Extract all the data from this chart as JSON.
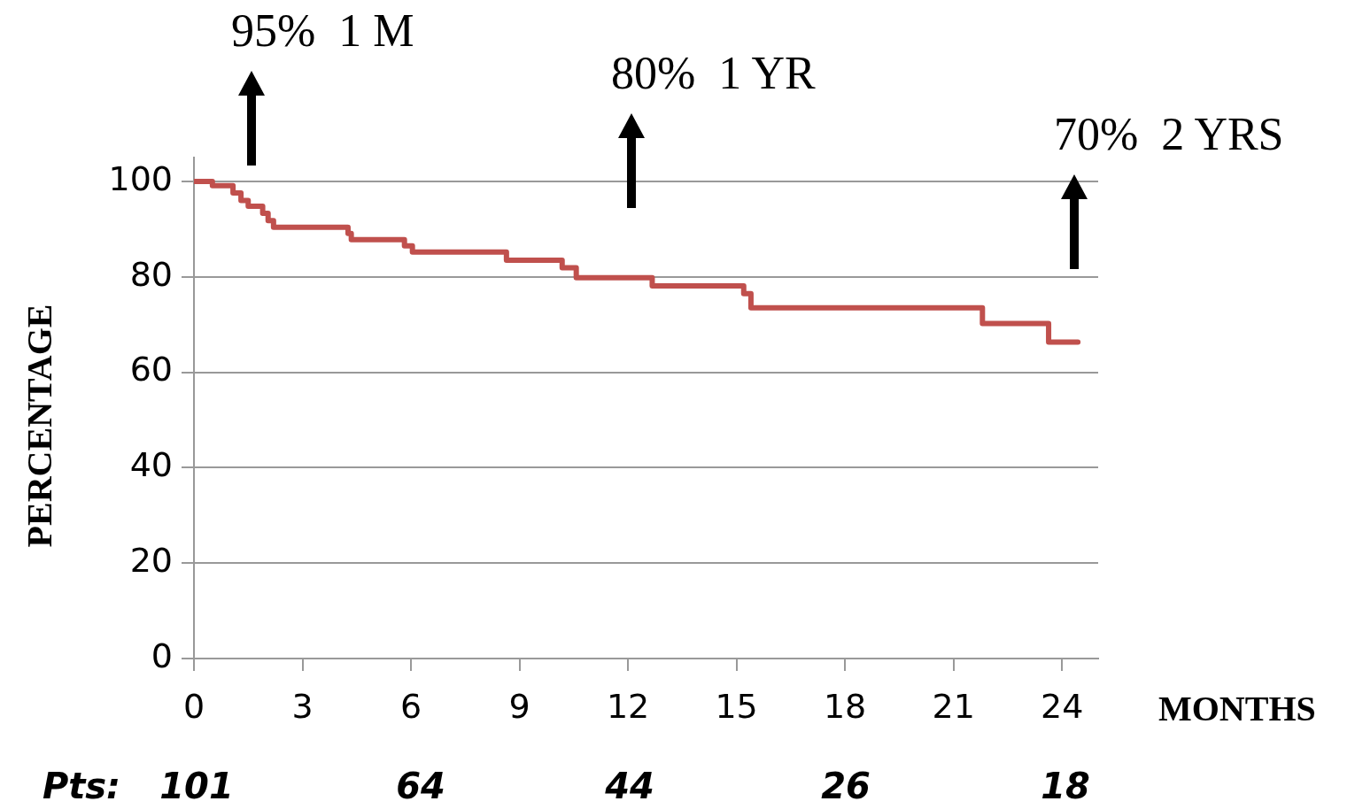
{
  "chart_data": {
    "type": "step",
    "xlabel": "MONTHS",
    "ylabel": "PERCENTAGE",
    "x": [
      0,
      0.51,
      1.08,
      1.3,
      1.5,
      1.9,
      2.05,
      2.2,
      4.26,
      4.35,
      5.82,
      6.04,
      8.64,
      10.18,
      10.57,
      12.67,
      15.2,
      15.4,
      21.8,
      23.63,
      24.44
    ],
    "series": [
      {
        "color": "#c0504d",
        "values": [
          100,
          99.1,
          97.6,
          96,
          94.8,
          93.3,
          91.8,
          90.4,
          89.1,
          87.8,
          86.5,
          85.2,
          83.5,
          81.9,
          79.8,
          78.1,
          76.5,
          73.5,
          70.2,
          66.3,
          66.3
        ]
      }
    ],
    "xlim": [
      0,
      25
    ],
    "xticks": [
      0,
      3,
      6,
      9,
      12,
      15,
      18,
      21,
      24
    ],
    "ylim": [
      0,
      105
    ],
    "yticks": [
      0,
      20,
      40,
      60,
      80,
      100
    ],
    "grid": "y",
    "legend": false,
    "marker": "none",
    "line_style": "solid",
    "annotations": [
      "95%  1 M",
      "80%  1 YR",
      "70%  2 YRS",
      "Pts:",
      "101",
      "64",
      "44",
      "26",
      "18"
    ]
  }
}
